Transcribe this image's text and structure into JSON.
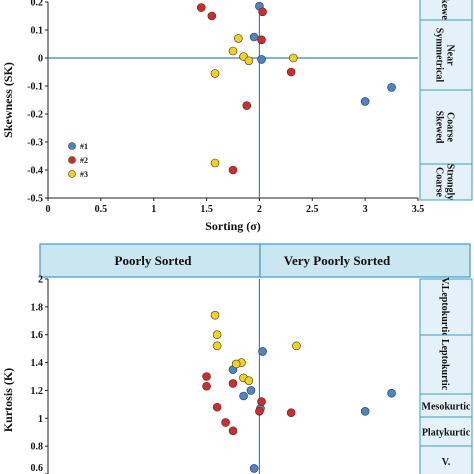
{
  "chart_data": [
    {
      "type": "scatter",
      "xlabel": "Sorting (σ)",
      "ylabel": "Skewness (SK)",
      "xlim": [
        0,
        3.5
      ],
      "ylim": [
        -0.5,
        0.2
      ],
      "xticks": [
        "0",
        "0.5",
        "1",
        "1.5",
        "2",
        "2.5",
        "3",
        "3.5"
      ],
      "yticks": [
        "0.2",
        "0.1",
        "0",
        "-0.1",
        "-0.2",
        "-0.3",
        "-0.4",
        "-0.5"
      ],
      "zones": [
        "Skewed",
        "Near Symmetrical",
        "Coarse Skewed",
        "Strongly Coarse"
      ],
      "legend_position": "left",
      "series": [
        {
          "name": "#1",
          "color": "#4b84c9",
          "points": [
            [
              2.0,
              0.185
            ],
            [
              1.95,
              0.075
            ],
            [
              2.02,
              -0.005
            ],
            [
              3.0,
              -0.155
            ],
            [
              3.25,
              -0.105
            ]
          ]
        },
        {
          "name": "#2",
          "color": "#d42a2a",
          "points": [
            [
              1.45,
              0.18
            ],
            [
              1.55,
              0.15
            ],
            [
              2.03,
              0.165
            ],
            [
              2.02,
              0.065
            ],
            [
              2.3,
              -0.05
            ],
            [
              1.88,
              -0.17
            ],
            [
              1.75,
              -0.4
            ]
          ]
        },
        {
          "name": "#3",
          "color": "#f2d21d",
          "points": [
            [
              1.8,
              0.07
            ],
            [
              1.75,
              0.025
            ],
            [
              1.85,
              0.005
            ],
            [
              1.9,
              -0.01
            ],
            [
              1.58,
              -0.055
            ],
            [
              2.32,
              0.0
            ],
            [
              1.58,
              -0.375
            ]
          ]
        }
      ]
    },
    {
      "type": "scatter",
      "ylabel": "Kurtosis (K)",
      "ylim": [
        0.6,
        2.0
      ],
      "yticks": [
        "2",
        "1.8",
        "1.6",
        "1.4",
        "1.2",
        "1",
        "0.8",
        "0.6"
      ],
      "header": [
        "Poorly Sorted",
        "Very Poorly Sorted"
      ],
      "zones": [
        "V.Leptokurtic",
        "Leptokurtic",
        "Mesokurtic",
        "Platykurtic",
        "V."
      ],
      "series": [
        {
          "name": "#1",
          "color": "#4b84c9",
          "points": [
            [
              2.03,
              1.48
            ],
            [
              1.92,
              1.2
            ],
            [
              1.85,
              1.16
            ],
            [
              1.75,
              1.35
            ],
            [
              2.01,
              1.07
            ],
            [
              3.25,
              1.18
            ],
            [
              3.0,
              1.05
            ],
            [
              1.95,
              0.64
            ]
          ]
        },
        {
          "name": "#2",
          "color": "#d42a2a",
          "points": [
            [
              1.5,
              1.3
            ],
            [
              1.5,
              1.23
            ],
            [
              1.6,
              1.08
            ],
            [
              1.68,
              0.97
            ],
            [
              2.02,
              1.12
            ],
            [
              2.0,
              1.05
            ],
            [
              1.75,
              1.25
            ],
            [
              1.75,
              0.91
            ],
            [
              2.3,
              1.04
            ]
          ]
        },
        {
          "name": "#3",
          "color": "#f2d21d",
          "points": [
            [
              1.58,
              1.74
            ],
            [
              1.6,
              1.52
            ],
            [
              1.83,
              1.4
            ],
            [
              1.78,
              1.39
            ],
            [
              1.85,
              1.29
            ],
            [
              1.9,
              1.27
            ],
            [
              2.35,
              1.52
            ],
            [
              1.6,
              1.6
            ]
          ]
        }
      ]
    }
  ]
}
